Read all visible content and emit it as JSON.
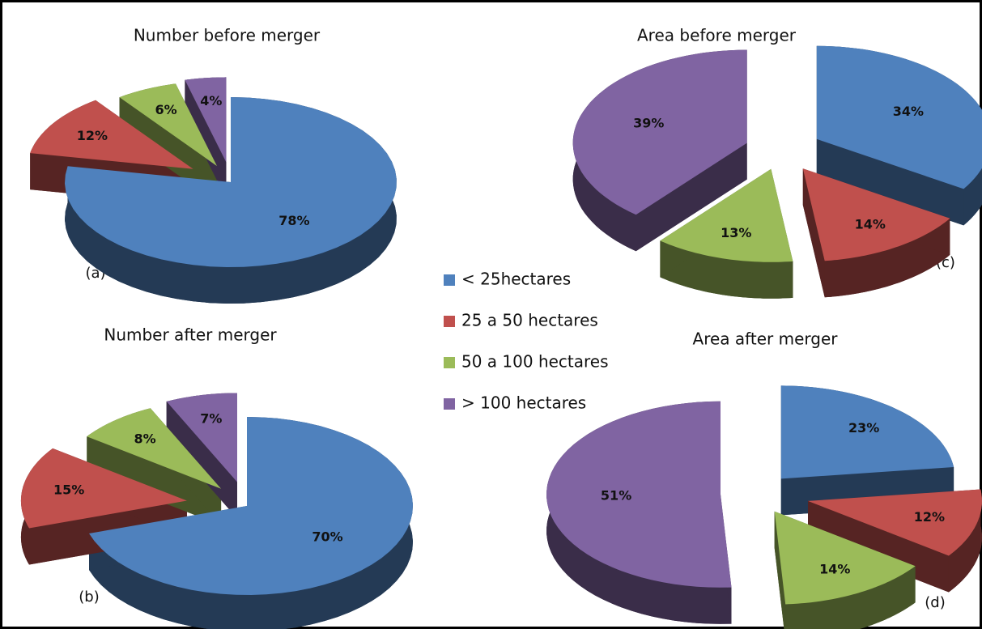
{
  "legend": {
    "categories": [
      "< 25hectares",
      "25 a 50 hectares",
      "50 a 100 hectares",
      "> 100 hectares"
    ],
    "colors": [
      "#4f81bd",
      "#c0504d",
      "#9bbb59",
      "#8064a2"
    ]
  },
  "chart_data": [
    {
      "type": "pie",
      "title": "Number before merger",
      "panel": "(a)",
      "values": [
        78,
        12,
        6,
        4
      ],
      "value_labels": [
        "78%",
        "12%",
        "6%",
        "4%"
      ]
    },
    {
      "type": "pie",
      "title": "Number after merger",
      "panel": "(b)",
      "values": [
        70,
        15,
        8,
        7
      ],
      "value_labels": [
        "70%",
        "15%",
        "8%",
        "7%"
      ]
    },
    {
      "type": "pie",
      "title": "Area before merger",
      "panel": "(c)",
      "values": [
        34,
        14,
        13,
        39
      ],
      "value_labels": [
        "34%",
        "14%",
        "13%",
        "39%"
      ]
    },
    {
      "type": "pie",
      "title": "Area after merger",
      "panel": "(d)",
      "values": [
        23,
        12,
        14,
        51
      ],
      "value_labels": [
        "23%",
        "12%",
        "14%",
        "51%"
      ]
    }
  ]
}
